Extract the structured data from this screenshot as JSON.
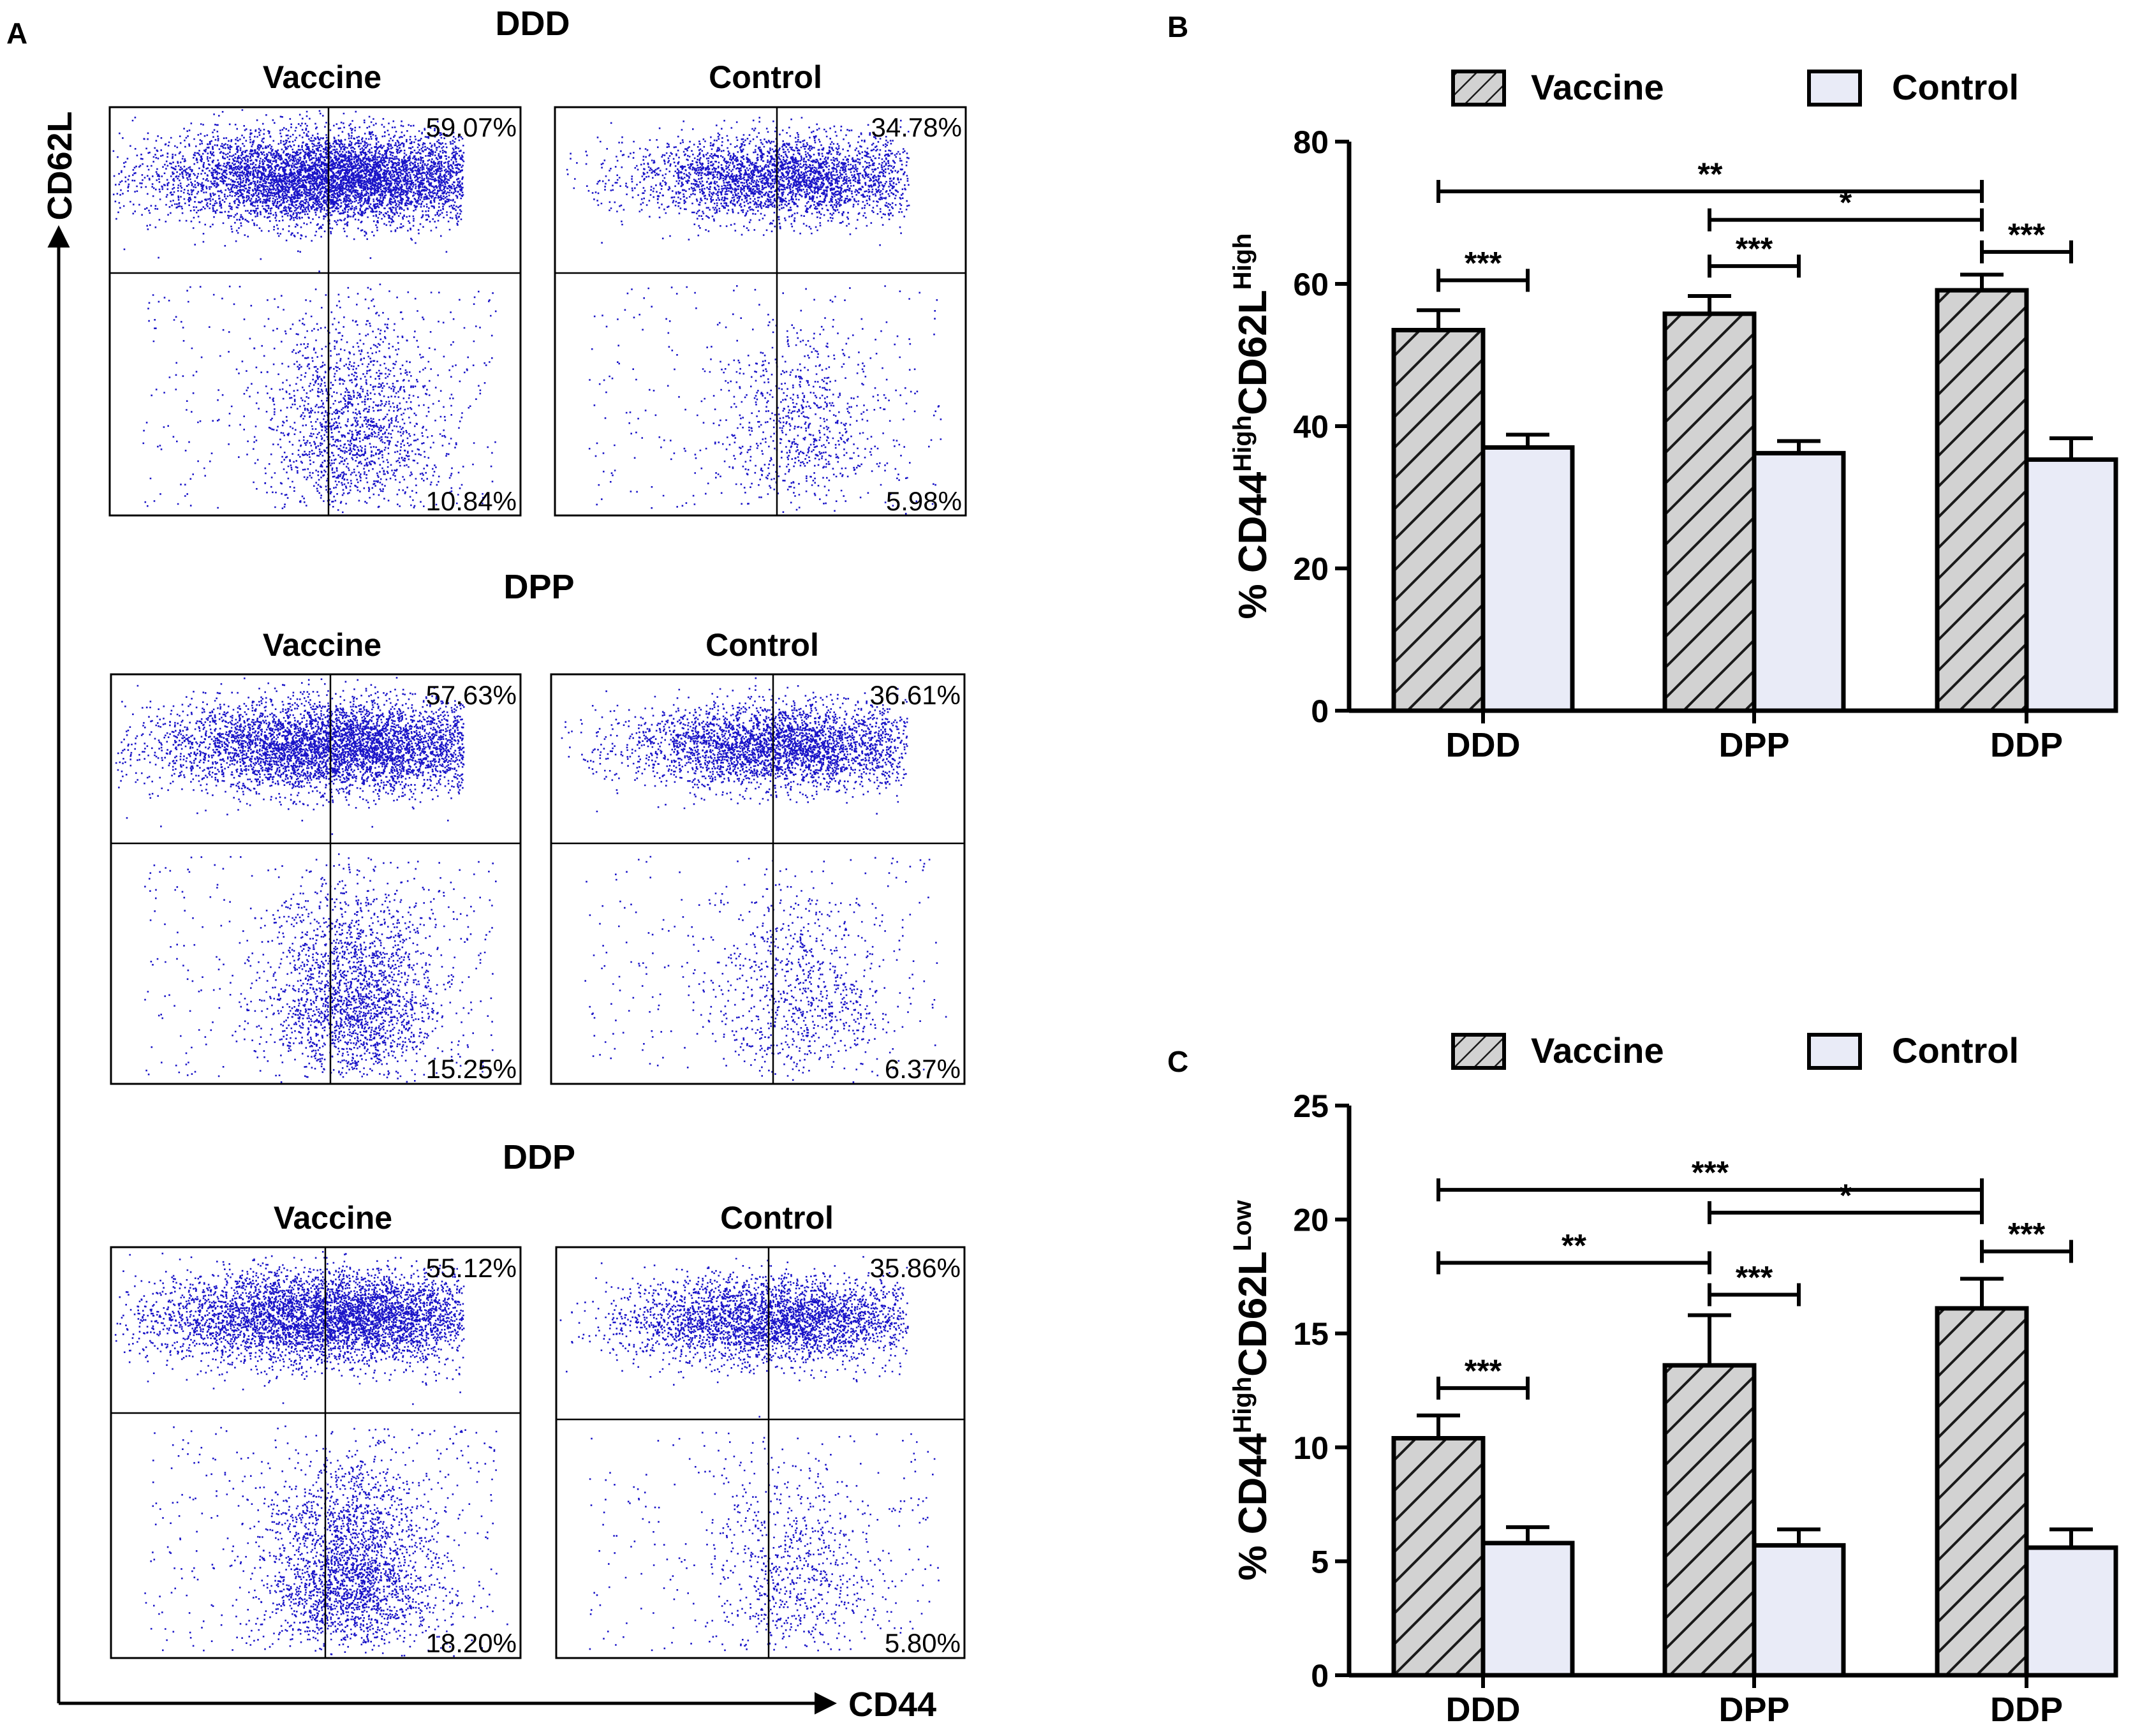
{
  "panel_labels": {
    "a": "A",
    "b": "B",
    "c": "C"
  },
  "panel_a": {
    "x_axis_label": "CD44",
    "y_axis_label": "CD62L",
    "col_titles": [
      "Vaccine",
      "Control"
    ],
    "groups": [
      {
        "name": "DDD",
        "plots": [
          {
            "title": "Vaccine",
            "upper_right": "59.07%",
            "lower_right": "10.84%"
          },
          {
            "title": "Control",
            "upper_right": "34.78%",
            "lower_right": "5.98%"
          }
        ]
      },
      {
        "name": "DPP",
        "plots": [
          {
            "title": "Vaccine",
            "upper_right": "57.63%",
            "lower_right": "15.25%"
          },
          {
            "title": "Control",
            "upper_right": "36.61%",
            "lower_right": "6.37%"
          }
        ]
      },
      {
        "name": "DDP",
        "plots": [
          {
            "title": "Vaccine",
            "upper_right": "55.12%",
            "lower_right": "18.20%"
          },
          {
            "title": "Control",
            "upper_right": "35.86%",
            "lower_right": "5.80%"
          }
        ]
      }
    ]
  },
  "colors": {
    "dots": "#1a14c8",
    "bar_vaccine": "#d0d0d0",
    "bar_control": "#e9ebf7",
    "ink": "#000000"
  },
  "chart_data": [
    {
      "type": "bar",
      "id": "B",
      "title": "",
      "ylabel_main": "% CD44",
      "ylabel_sup1": "High",
      "ylabel_mid": "CD62L",
      "ylabel_sup2": "High",
      "xlabel": "",
      "ylim": [
        0,
        80
      ],
      "yticks": [
        0,
        20,
        40,
        60,
        80
      ],
      "categories": [
        "DDD",
        "DPP",
        "DDP"
      ],
      "series": [
        {
          "name": "Vaccine",
          "values": [
            53.5,
            55.8,
            59.1
          ],
          "errors": [
            2.8,
            2.5,
            2.2
          ]
        },
        {
          "name": "Control",
          "values": [
            37.0,
            36.2,
            35.3
          ],
          "errors": [
            1.8,
            1.7,
            3.0
          ]
        }
      ],
      "legend": [
        "Vaccine",
        "Control"
      ],
      "significance": [
        {
          "from": "DDD Vaccine",
          "to": "DDP Vaccine",
          "label": "**",
          "y": 73
        },
        {
          "from": "DPP Vaccine",
          "to": "DDP Vaccine",
          "label": "*",
          "y": 69
        },
        {
          "from": "DDD Vaccine",
          "to": "DDD Control",
          "label": "***",
          "y": 60.5
        },
        {
          "from": "DPP Vaccine",
          "to": "DPP Control",
          "label": "***",
          "y": 62.5
        },
        {
          "from": "DDP Vaccine",
          "to": "DDP Control",
          "label": "***",
          "y": 64.5
        }
      ]
    },
    {
      "type": "bar",
      "id": "C",
      "title": "",
      "ylabel_main": "% CD44",
      "ylabel_sup1": "High",
      "ylabel_mid": "CD62L",
      "ylabel_sup2": "Low",
      "xlabel": "",
      "ylim": [
        0,
        25
      ],
      "yticks": [
        0,
        5,
        10,
        15,
        20,
        25
      ],
      "categories": [
        "DDD",
        "DPP",
        "DDP"
      ],
      "series": [
        {
          "name": "Vaccine",
          "values": [
            10.4,
            13.6,
            16.1
          ],
          "errors": [
            1.0,
            2.2,
            1.3
          ]
        },
        {
          "name": "Control",
          "values": [
            5.8,
            5.7,
            5.6
          ],
          "errors": [
            0.7,
            0.7,
            0.8
          ]
        }
      ],
      "legend": [
        "Vaccine",
        "Control"
      ],
      "significance": [
        {
          "from": "DDD Vaccine",
          "to": "DDP Vaccine",
          "label": "***",
          "y": 21.3
        },
        {
          "from": "DPP Vaccine",
          "to": "DDP Vaccine",
          "label": "*",
          "y": 20.3
        },
        {
          "from": "DDD Vaccine",
          "to": "DPP Vaccine",
          "label": "**",
          "y": 18.1
        },
        {
          "from": "DDD Vaccine",
          "to": "DDD Control",
          "label": "***",
          "y": 12.6
        },
        {
          "from": "DPP Vaccine",
          "to": "DPP Control",
          "label": "***",
          "y": 16.7
        },
        {
          "from": "DDP Vaccine",
          "to": "DDP Control",
          "label": "***",
          "y": 18.6
        }
      ]
    }
  ]
}
